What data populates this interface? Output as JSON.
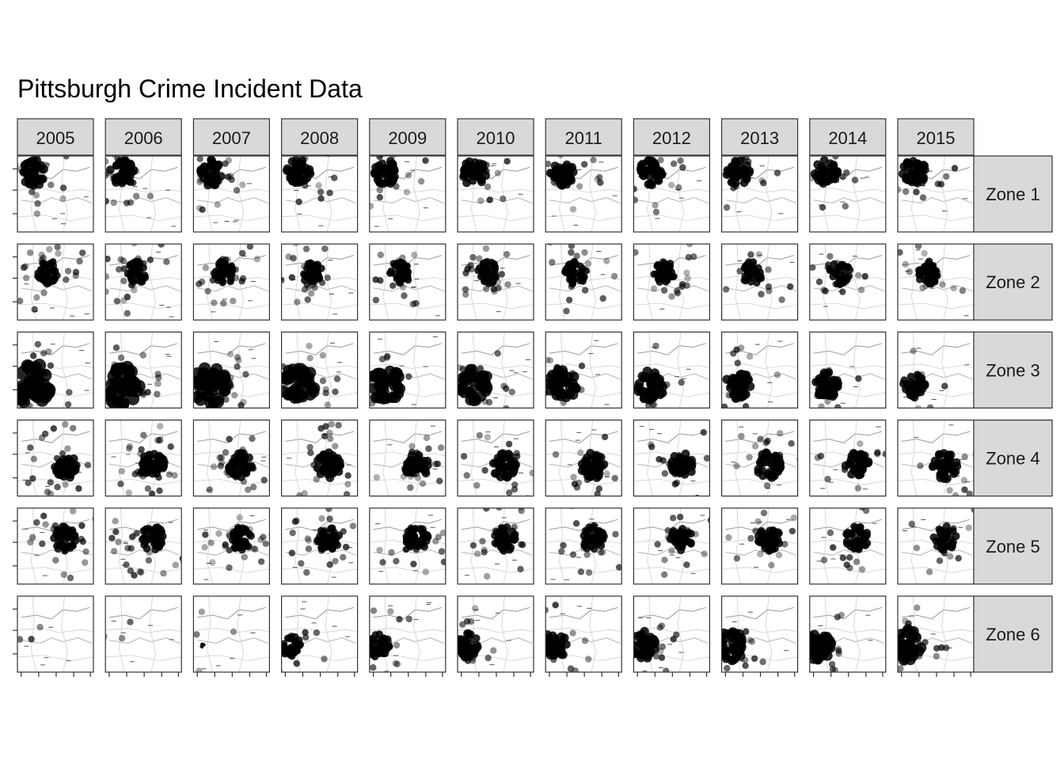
{
  "chart_data": {
    "type": "scatter",
    "title": "Pittsburgh Crime Incident Data",
    "xlabel": "",
    "ylabel": "",
    "facet_columns": [
      "2005",
      "2006",
      "2007",
      "2008",
      "2009",
      "2010",
      "2011",
      "2012",
      "2013",
      "2014",
      "2015"
    ],
    "facet_rows": [
      "Zone 1",
      "Zone 2",
      "Zone 3",
      "Zone 4",
      "Zone 5",
      "Zone 6"
    ],
    "axis_tick_labels_shown": false,
    "points": "semi-transparent black incident points overlaid on a grayscale street map of Pittsburgh",
    "colors": {
      "strip_fill": "#d9d9d9",
      "strip_border": "#333333",
      "point": "#000000",
      "map_lines": "#8a8a8a"
    }
  }
}
